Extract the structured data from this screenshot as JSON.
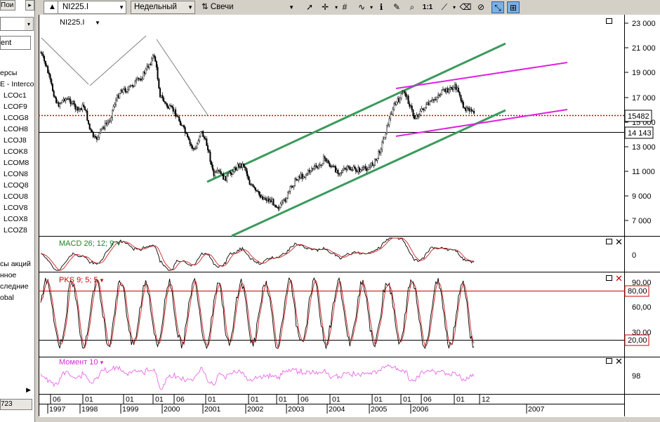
{
  "left_panel": {
    "top_button": "Пои",
    "input_value": "ent",
    "group_heads": [
      {
        "label": "ерсы",
        "y": 104
      },
      {
        "label": "E - Interco",
        "y": 120
      }
    ],
    "items": [
      "LCOc1",
      "LCOF9",
      "LCOG8",
      "LCOH8",
      "LCOJ8",
      "LCOK8",
      "LCOM8",
      "LCON8",
      "LCOQ8",
      "LCOU8",
      "LCOV8",
      "LCOX8",
      "LCOZ8"
    ],
    "lower_items": [
      "сы акций",
      "нное",
      "следние",
      "obal"
    ],
    "status_value": "723"
  },
  "toolbar": {
    "symbol": "NI225.I",
    "period": "Недельный",
    "chart_type": "Свечи"
  },
  "chart": {
    "symbol_label": "NI225.I",
    "main_y_ticks": [
      "23 000",
      "21 000",
      "19 000",
      "17 000",
      "15 000",
      "13 000",
      "11 000",
      "9 000",
      "7 000"
    ],
    "price_tag": "15482",
    "level_tag": "14 143",
    "macd": {
      "title": "MACD 26; 12; 9",
      "tick": "0"
    },
    "pks": {
      "title": "PKS 9; 5; 5",
      "ticks": [
        "90,00",
        "60,00",
        "30,00"
      ],
      "upper_tag": "80,00",
      "lower_tag": "20,00"
    },
    "momentum": {
      "title": "Момент 10",
      "tick": "98"
    },
    "months": [
      {
        "x": 72,
        "label": "06"
      },
      {
        "x": 118,
        "label": "01"
      },
      {
        "x": 176,
        "label": "01"
      },
      {
        "x": 218,
        "label": "01"
      },
      {
        "x": 248,
        "label": "06"
      },
      {
        "x": 293,
        "label": "01"
      },
      {
        "x": 354,
        "label": "01"
      },
      {
        "x": 394,
        "label": "01"
      },
      {
        "x": 425,
        "label": "06"
      },
      {
        "x": 470,
        "label": "01"
      },
      {
        "x": 530,
        "label": "01"
      },
      {
        "x": 571,
        "label": "01"
      },
      {
        "x": 600,
        "label": "06"
      },
      {
        "x": 647,
        "label": "01"
      },
      {
        "x": 683,
        "label": "12"
      }
    ],
    "years": [
      {
        "x": 72,
        "label": "1997"
      },
      {
        "x": 118,
        "label": "1998"
      },
      {
        "x": 176,
        "label": "1999"
      },
      {
        "x": 235,
        "label": "2000"
      },
      {
        "x": 293,
        "label": "2001"
      },
      {
        "x": 354,
        "label": "2002"
      },
      {
        "x": 412,
        "label": "2003"
      },
      {
        "x": 470,
        "label": "2004"
      },
      {
        "x": 530,
        "label": "2005"
      },
      {
        "x": 589,
        "label": "2006"
      },
      {
        "x": 754,
        "label": "2007"
      }
    ],
    "colors": {
      "up": "#ffffff",
      "down": "#000000",
      "channel": "#3b9a5c",
      "wedge": "#e020e0",
      "level": "#cc0000",
      "macd_signal": "#cc2222",
      "momentum": "#e868e8"
    }
  }
}
